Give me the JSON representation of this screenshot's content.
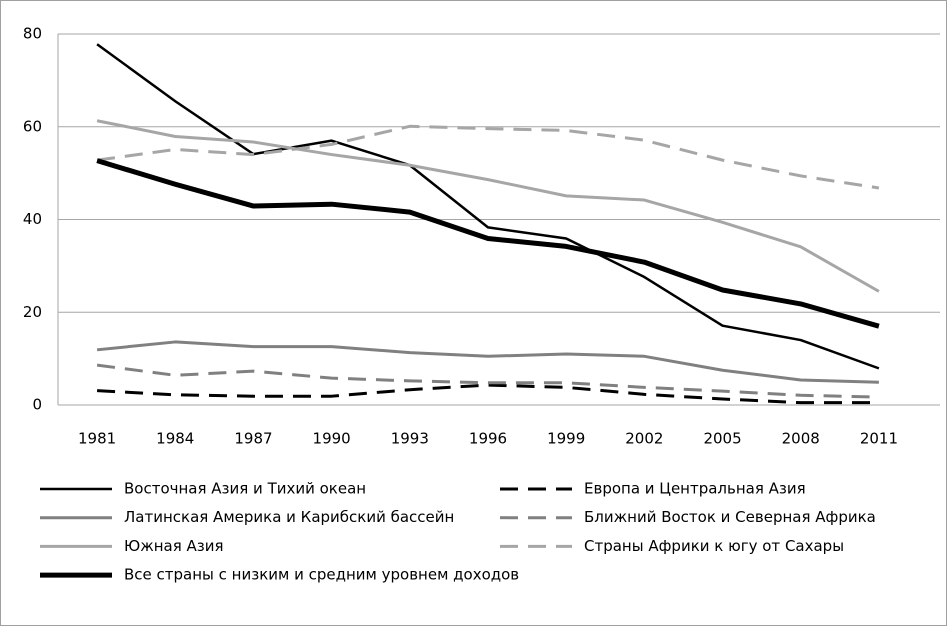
{
  "chart_data": {
    "type": "line",
    "categories": [
      "1981",
      "1984",
      "1987",
      "1990",
      "1993",
      "1996",
      "1999",
      "2002",
      "2005",
      "2008",
      "2011"
    ],
    "ylim": [
      0,
      80
    ],
    "yticks": [
      0,
      20,
      40,
      60,
      80
    ],
    "grid": true,
    "series": [
      {
        "name": "Восточная Азия и Тихий океан",
        "color": "#000000",
        "dashed": false,
        "linewidth": 2.5,
        "values": [
          77.8,
          65.5,
          54.1,
          57.0,
          51.7,
          38.3,
          35.9,
          27.6,
          17.1,
          14.0,
          7.9
        ]
      },
      {
        "name": "Европа и Центральная Азия",
        "color": "#000000",
        "dashed": true,
        "linewidth": 3,
        "values": [
          3.1,
          2.2,
          1.9,
          1.9,
          3.3,
          4.3,
          3.8,
          2.3,
          1.3,
          0.5,
          0.5
        ]
      },
      {
        "name": "Латинская Америка и Карибский бассейн",
        "color": "#808080",
        "dashed": false,
        "linewidth": 3,
        "values": [
          11.9,
          13.6,
          12.6,
          12.6,
          11.3,
          10.5,
          11.0,
          10.5,
          7.5,
          5.4,
          4.9
        ]
      },
      {
        "name": "Ближний Восток и Северная Африка",
        "color": "#808080",
        "dashed": true,
        "linewidth": 3,
        "values": [
          8.6,
          6.4,
          7.3,
          5.8,
          5.2,
          4.8,
          4.8,
          3.8,
          3.0,
          2.1,
          1.7
        ]
      },
      {
        "name": "Южная Азия",
        "color": "#a6a6a6",
        "dashed": false,
        "linewidth": 3,
        "values": [
          61.3,
          57.9,
          56.7,
          54.0,
          51.7,
          48.6,
          45.1,
          44.2,
          39.4,
          34.1,
          24.5
        ]
      },
      {
        "name": "Страны Африки к югу от Сахары",
        "color": "#a6a6a6",
        "dashed": true,
        "linewidth": 3,
        "values": [
          52.8,
          55.1,
          54.0,
          56.2,
          60.1,
          59.6,
          59.2,
          57.1,
          52.8,
          49.4,
          46.8
        ]
      },
      {
        "name": "Все страны с низким и средним уровнем доходов",
        "color": "#000000",
        "dashed": false,
        "linewidth": 5,
        "values": [
          52.7,
          47.6,
          42.9,
          43.3,
          41.6,
          35.9,
          34.2,
          30.8,
          24.8,
          21.8,
          17.0
        ]
      }
    ]
  }
}
